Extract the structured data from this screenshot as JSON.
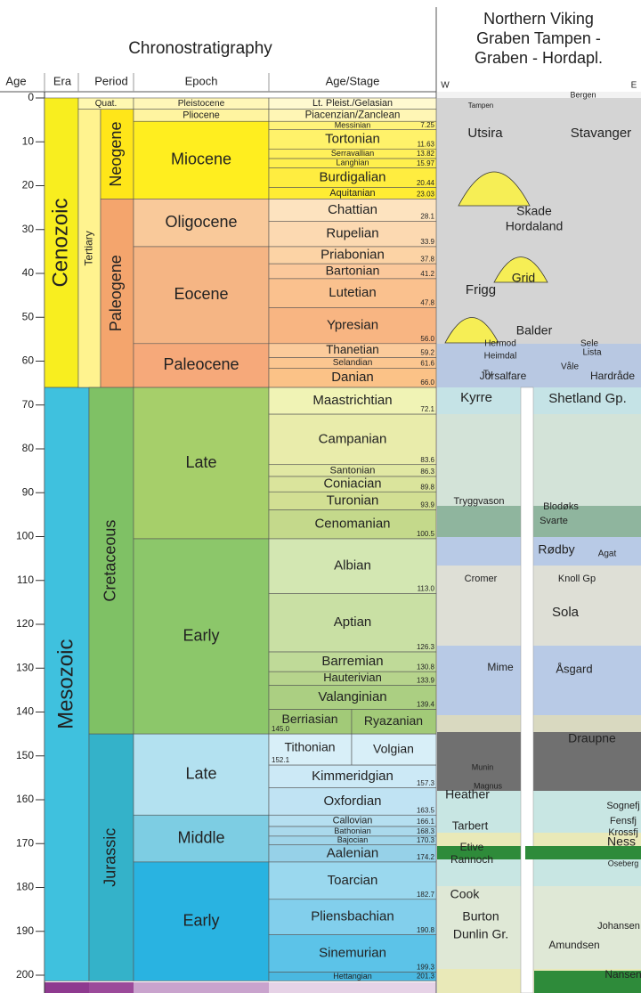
{
  "header": {
    "title": "Chronostratigraphy",
    "columns": [
      "Age",
      "Era",
      "Period",
      "Epoch",
      "Age/Stage"
    ],
    "section_title": [
      "Northern Viking",
      "Graben Tampen -",
      "Graben - Hordapl."
    ],
    "west": "W",
    "east": "E"
  },
  "age_ticks": [
    0,
    10,
    20,
    30,
    40,
    50,
    60,
    70,
    80,
    90,
    100,
    110,
    120,
    130,
    140,
    150,
    160,
    170,
    180,
    190,
    200
  ],
  "eras": [
    {
      "label": "Cenozoic",
      "top": 0,
      "base": 66,
      "color": "#f8ee1f"
    },
    {
      "label": "Mesozoic",
      "top": 66,
      "base": 201.3,
      "color": "#3fc1de"
    }
  ],
  "periods": [
    {
      "label": "Quat.",
      "top": 0,
      "base": 2.58,
      "color": "#fff8b0"
    },
    {
      "label": "Tertiary",
      "top": 2.58,
      "base": 66,
      "color": "#fff38f"
    },
    {
      "label": "Neogene",
      "top": 2.58,
      "base": 23.03,
      "color": "#ffe619"
    },
    {
      "label": "Paleogene",
      "top": 23.03,
      "base": 66,
      "color": "#f4a56d"
    },
    {
      "label": "Cretaceous",
      "top": 66,
      "base": 145,
      "color": "#7fc165"
    },
    {
      "label": "Jurassic",
      "top": 145,
      "base": 201.3,
      "color": "#34b2c9"
    }
  ],
  "epochs": [
    {
      "label": "Pleistocene",
      "base": 2.58,
      "color": "#fff6b8"
    },
    {
      "label": "Pliocene",
      "base": 5.33,
      "color": "#fff4a0"
    },
    {
      "label": "Miocene",
      "base": 23.03,
      "color": "#ffee1f"
    },
    {
      "label": "Oligocene",
      "base": 33.9,
      "color": "#f9c99a"
    },
    {
      "label": "Eocene",
      "base": 56,
      "color": "#f5b584"
    },
    {
      "label": "Paleocene",
      "base": 66,
      "color": "#f6a97a"
    },
    {
      "label": "Late",
      "base": 100.5,
      "color": "#a6cf6a"
    },
    {
      "label": "Early",
      "base": 145,
      "color": "#8cc76a"
    },
    {
      "label": "Late",
      "base": 163.5,
      "color": "#b3e1f0"
    },
    {
      "label": "Middle",
      "base": 174.2,
      "color": "#7dcde3"
    },
    {
      "label": "Early",
      "base": 201.3,
      "color": "#29b3e1"
    }
  ],
  "stages": [
    {
      "label": "Lt. Pleist./Gelasian",
      "base": 2.58,
      "color": "#fff9d0"
    },
    {
      "label": "Piacenzian/Zanclean",
      "base": 5.33,
      "color": "#fff6b5"
    },
    {
      "label": "Messinian",
      "base": 7.25,
      "base_label": "7.25",
      "color": "#fff37a"
    },
    {
      "label": "Tortonian",
      "base": 11.63,
      "base_label": "11.63",
      "color": "#fff26a"
    },
    {
      "label": "Serravallian",
      "base": 13.82,
      "base_label": "13.82",
      "color": "#fff05a"
    },
    {
      "label": "Langhian",
      "base": 15.97,
      "base_label": "15.97",
      "color": "#ffef4d"
    },
    {
      "label": "Burdigalian",
      "base": 20.44,
      "base_label": "20.44",
      "color": "#ffed40"
    },
    {
      "label": "Aquitanian",
      "base": 23.03,
      "base_label": "23.03",
      "color": "#ffec33"
    },
    {
      "label": "Chattian",
      "base": 28.1,
      "base_label": "28.1",
      "color": "#fde3bf"
    },
    {
      "label": "Rupelian",
      "base": 33.9,
      "base_label": "33.9",
      "color": "#fcd9b1"
    },
    {
      "label": "Priabonian",
      "base": 37.8,
      "base_label": "37.8",
      "color": "#fcd3a5"
    },
    {
      "label": "Bartonian",
      "base": 41.2,
      "base_label": "41.2",
      "color": "#fbc89b"
    },
    {
      "label": "Lutetian",
      "base": 47.8,
      "base_label": "47.8",
      "color": "#fac18e"
    },
    {
      "label": "Ypresian",
      "base": 56,
      "base_label": "56.0",
      "color": "#f8b582"
    },
    {
      "label": "Thanetian",
      "base": 59.2,
      "base_label": "59.2",
      "color": "#fbcb9b"
    },
    {
      "label": "Selandian",
      "base": 61.6,
      "base_label": "61.6",
      "color": "#fbc690"
    },
    {
      "label": "Danian",
      "base": 66,
      "base_label": "66.0",
      "color": "#fbc287"
    },
    {
      "label": "Maastrichtian",
      "base": 72.1,
      "base_label": "72.1",
      "color": "#f0f3b5"
    },
    {
      "label": "Campanian",
      "base": 83.6,
      "base_label": "83.6",
      "color": "#e9ecab"
    },
    {
      "label": "Santonian",
      "base": 86.3,
      "base_label": "86.3",
      "color": "#e1e8a3"
    },
    {
      "label": "Coniacian",
      "base": 89.8,
      "base_label": "89.8",
      "color": "#dae49c"
    },
    {
      "label": "Turonian",
      "base": 93.9,
      "base_label": "93.9",
      "color": "#d2df93"
    },
    {
      "label": "Cenomanian",
      "base": 100.5,
      "base_label": "100.5",
      "color": "#c4d98b"
    },
    {
      "label": "Albian",
      "base": 113,
      "base_label": "113.0",
      "color": "#d3e7b2"
    },
    {
      "label": "Aptian",
      "base": 126.3,
      "base_label": "126.3",
      "color": "#c9e0a4"
    },
    {
      "label": "Barremian",
      "base": 130.8,
      "base_label": "130.8",
      "color": "#bfda98"
    },
    {
      "label": "Hauterivian",
      "base": 133.9,
      "base_label": "133.9",
      "color": "#b6d48c"
    },
    {
      "label": "Valanginian",
      "base": 139.4,
      "base_label": "139.4",
      "color": "#abcf82"
    },
    {
      "label": "Berriasian",
      "base": 145,
      "base_label": "145.0",
      "regional": "Ryazanian",
      "color": "#a2ca78"
    },
    {
      "label": "Tithonian",
      "base": 152.1,
      "base_label": "152.1",
      "regional": "Volgian",
      "color": "#d8eff8"
    },
    {
      "label": "Kimmeridgian",
      "base": 157.3,
      "base_label": "157.3",
      "color": "#cce9f6"
    },
    {
      "label": "Oxfordian",
      "base": 163.5,
      "base_label": "163.5",
      "color": "#c0e3f3"
    },
    {
      "label": "Callovian",
      "base": 166.1,
      "base_label": "166.1",
      "color": "#b5dff0"
    },
    {
      "label": "Bathonian",
      "base": 168.3,
      "base_label": "168.3",
      "color": "#aad9ec"
    },
    {
      "label": "Bajocian",
      "base": 170.3,
      "base_label": "170.3",
      "color": "#a0d5ea"
    },
    {
      "label": "Aalenian",
      "base": 174.2,
      "base_label": "174.2",
      "color": "#96d1e8"
    },
    {
      "label": "Toarcian",
      "base": 182.7,
      "base_label": "182.7",
      "color": "#9ad8ee"
    },
    {
      "label": "Pliensbachian",
      "base": 190.8,
      "base_label": "190.8",
      "color": "#82cfec"
    },
    {
      "label": "Sinemurian",
      "base": 199.3,
      "base_label": "199.3",
      "color": "#5cc3e8"
    },
    {
      "label": "Hettangian",
      "base": 201.3,
      "base_label": "201.3",
      "color": "#4ab8e0"
    }
  ],
  "formations": [
    "Bergen",
    "Tampen",
    "Utsira",
    "Stavanger",
    "Skade",
    "Hordaland",
    "Grid",
    "Frigg",
    "Balder",
    "Hermod",
    "Sele",
    "Heimdal",
    "Lista",
    "Ty",
    "Våle",
    "Jorsalfare",
    "Hardråde",
    "Kyrre",
    "Shetland Gp.",
    "Tryggvason",
    "Blodøks",
    "Svarte",
    "Rødby",
    "Agat",
    "Cromer",
    "Knoll Gp",
    "Sola",
    "Mime",
    "Åsgard",
    "Munin",
    "Magnus",
    "Draupne",
    "Sognefj",
    "Heather",
    "Fensfj",
    "Krossfj",
    "Tarbert",
    "Ness",
    "Etive",
    "Rannoch",
    "Oseberg",
    "Cook",
    "Burton",
    "Dunlin Gr.",
    "Johansen",
    "Amundsen",
    "Nansen"
  ]
}
